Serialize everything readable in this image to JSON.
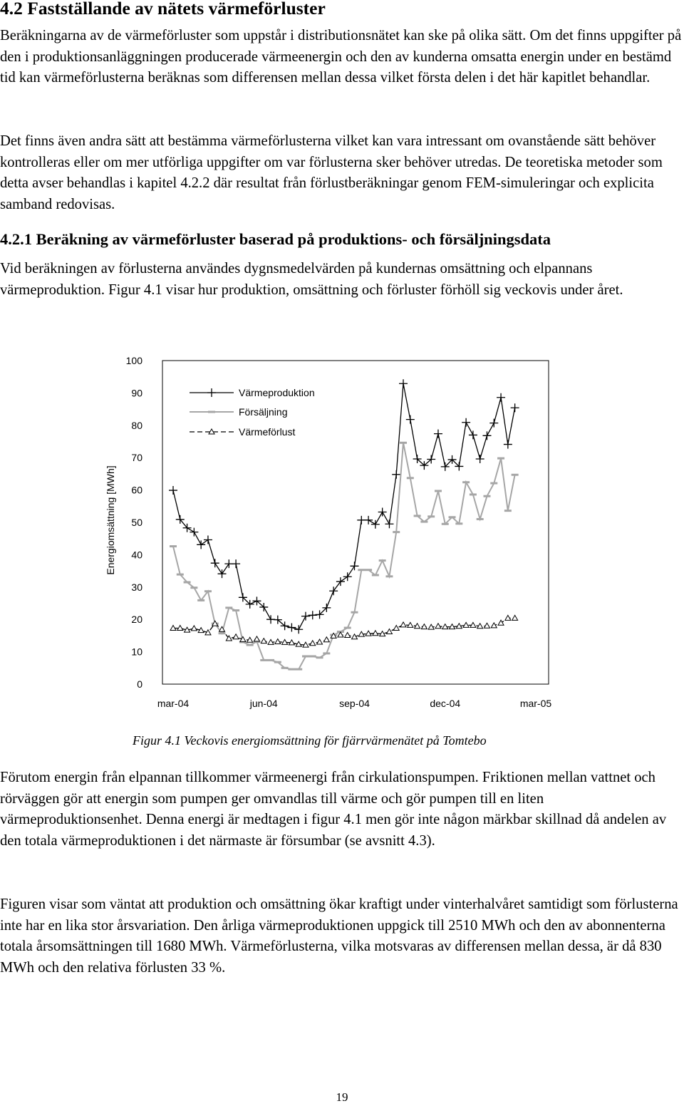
{
  "section": {
    "heading": "4.2 Fastställande av nätets värmeförluster",
    "paragraphs": [
      "Beräkningarna av de värmeförluster som uppstår i distributionsnätet kan ske på olika sätt. Om det finns uppgifter på den i produktionsanläggningen producerade värmeenergin och den av kunderna omsatta energin under en bestämd tid kan värmeförlusterna beräknas som differensen mellan dessa vilket första delen i det här kapitlet behandlar.",
      "Det finns även andra sätt att bestämma värmeförlusterna vilket kan vara intressant om ovanstående sätt behöver kontrolleras eller om mer utförliga uppgifter om var förlusterna sker behöver utredas. De teoretiska metoder som detta avser behandlas i kapitel 4.2.2 där resultat från förlustberäkningar genom FEM-simuleringar och explicita samband redovisas."
    ]
  },
  "subsection": {
    "heading": "4.2.1 Beräkning av värmeförluster baserad på produktions- och försäljningsdata",
    "intro": "Vid beräkningen av förlusterna användes dygnsmedelvärden på kundernas omsättning och elpannans värmeproduktion. Figur 4.1 visar hur produktion, omsättning och förluster förhöll sig veckovis under året."
  },
  "figure": {
    "caption": "Figur 4.1 Veckovis energiomsättning för fjärrvärmenätet på Tomtebo"
  },
  "after_paragraphs": [
    "Förutom energin från elpannan tillkommer värmeenergi från cirkulationspumpen. Friktionen mellan vattnet och rörväggen gör att energin som pumpen ger omvandlas till värme och gör pumpen till en liten värmeproduktionsenhet. Denna energi är medtagen i figur 4.1 men gör inte någon märkbar skillnad då andelen av den totala värmeproduktionen i det närmaste är försumbar (se avsnitt 4.3).",
    "Figuren visar som väntat att produktion och omsättning ökar kraftigt under vinterhalvåret samtidigt som förlusterna inte har en lika stor årsvariation. Den årliga värmeproduktionen uppgick till 2510 MWh och den av abonnenterna totala årsomsättningen till 1680 MWh. Värmeförlusterna, vilka motsvaras av differensen mellan dessa, är då 830 MWh och den relativa förlusten 33 %."
  ],
  "page_number": "19",
  "chart_data": {
    "type": "line",
    "title": "",
    "xlabel": "",
    "ylabel": "Energiomsättning [MWh]",
    "ylim": [
      0,
      100
    ],
    "y_ticks": [
      "0",
      "10",
      "20",
      "30",
      "40",
      "50",
      "60",
      "70",
      "80",
      "90",
      "100"
    ],
    "x_tick_labels": [
      "mar-04",
      "jun-04",
      "sep-04",
      "dec-04",
      "mar-05"
    ],
    "x_tick_weeks": [
      0,
      13,
      26,
      39,
      52
    ],
    "x_weeks": [
      0,
      1,
      2,
      3,
      4,
      5,
      6,
      7,
      8,
      9,
      10,
      11,
      12,
      13,
      14,
      15,
      16,
      17,
      18,
      19,
      20,
      21,
      22,
      23,
      24,
      25,
      26,
      27,
      28,
      29,
      30,
      31,
      32,
      33,
      34,
      35,
      36,
      37,
      38,
      39,
      40,
      41,
      42,
      43,
      44,
      45,
      46,
      47,
      48,
      49,
      50,
      51,
      52,
      53,
      54
    ],
    "grid": false,
    "legend_position": "top-left",
    "series": [
      {
        "name": "Värmeproduktion",
        "color": "#000000",
        "marker": "plus",
        "values": [
          59.9,
          50.9,
          48.3,
          47.0,
          43.1,
          44.6,
          37.4,
          34.1,
          37.2,
          37.2,
          26.8,
          24.7,
          25.7,
          23.8,
          20.0,
          19.9,
          18.0,
          17.5,
          16.9,
          21.0,
          21.3,
          21.5,
          23.6,
          28.8,
          31.7,
          33.2,
          36.5,
          50.7,
          50.7,
          49.4,
          53.2,
          49.5,
          64.8,
          92.9,
          81.8,
          69.6,
          67.6,
          69.5,
          77.4,
          67.2,
          69.4,
          67.3,
          80.9,
          77.0,
          69.6,
          76.8,
          80.7,
          88.6,
          74.1,
          85.4
        ]
      },
      {
        "name": "Försäljning",
        "color": "#a6a6a6",
        "marker": "dash",
        "values": [
          42.6,
          33.9,
          31.5,
          29.8,
          25.9,
          28.7,
          18.7,
          15.7,
          23.6,
          22.8,
          13.0,
          12.1,
          13.1,
          7.4,
          7.4,
          6.8,
          5.0,
          4.6,
          4.6,
          8.6,
          8.6,
          8.2,
          9.5,
          15.2,
          16.2,
          17.4,
          22.2,
          35.3,
          35.3,
          33.7,
          38.2,
          33.3,
          47.0,
          74.6,
          63.7,
          52.0,
          50.2,
          51.8,
          59.7,
          49.5,
          51.6,
          49.6,
          62.4,
          58.6,
          51.0,
          58.1,
          62.1,
          69.8,
          53.6,
          64.7
        ]
      },
      {
        "name": "Värmeförlust",
        "color": "#000000",
        "marker": "triangle",
        "dashed": true,
        "values": [
          17.3,
          17.3,
          16.7,
          17.2,
          16.6,
          15.9,
          18.7,
          16.9,
          14.1,
          14.6,
          13.8,
          13.6,
          13.9,
          13.3,
          12.9,
          13.1,
          12.9,
          12.8,
          12.3,
          12.1,
          12.6,
          13.0,
          13.7,
          14.9,
          15.2,
          15.1,
          14.6,
          15.4,
          15.6,
          15.7,
          15.5,
          16.2,
          17.3,
          18.3,
          18.2,
          17.9,
          17.7,
          17.6,
          17.9,
          17.7,
          17.7,
          17.9,
          18.2,
          18.2,
          17.9,
          18.0,
          18.1,
          18.9,
          20.4,
          20.4
        ],
        "offset_weeks": 0
      }
    ],
    "series_x": {
      "Värmeproduktion": [
        0,
        1,
        2,
        3,
        4,
        5,
        6,
        7,
        8,
        9,
        10,
        11,
        12,
        13,
        14,
        15,
        16,
        17,
        18,
        19,
        20,
        21,
        22,
        23,
        24,
        25,
        26,
        27,
        28,
        29,
        30,
        31,
        32,
        33,
        34,
        35,
        36,
        37,
        38,
        39,
        40,
        41,
        42,
        43,
        44,
        45,
        46,
        47,
        48,
        49
      ],
      "Försäljning": [
        0,
        1,
        2,
        3,
        4,
        5,
        6,
        7,
        8,
        9,
        10,
        11,
        12,
        13,
        14,
        15,
        16,
        17,
        18,
        19,
        20,
        21,
        22,
        23,
        24,
        25,
        26,
        27,
        28,
        29,
        30,
        31,
        32,
        33,
        34,
        35,
        36,
        37,
        38,
        39,
        40,
        41,
        42,
        43,
        44,
        45,
        46,
        47,
        48,
        49
      ],
      "Värmeförlust": [
        0,
        1,
        2,
        3,
        4,
        5,
        6,
        7,
        8,
        9,
        10,
        11,
        12,
        13,
        14,
        15,
        16,
        17,
        18,
        19,
        20,
        21,
        22,
        23,
        24,
        25,
        26,
        27,
        28,
        29,
        30,
        31,
        32,
        33,
        34,
        35,
        36,
        37,
        38,
        39,
        40,
        41,
        42,
        43,
        44,
        45,
        46,
        47,
        48,
        49
      ]
    }
  }
}
